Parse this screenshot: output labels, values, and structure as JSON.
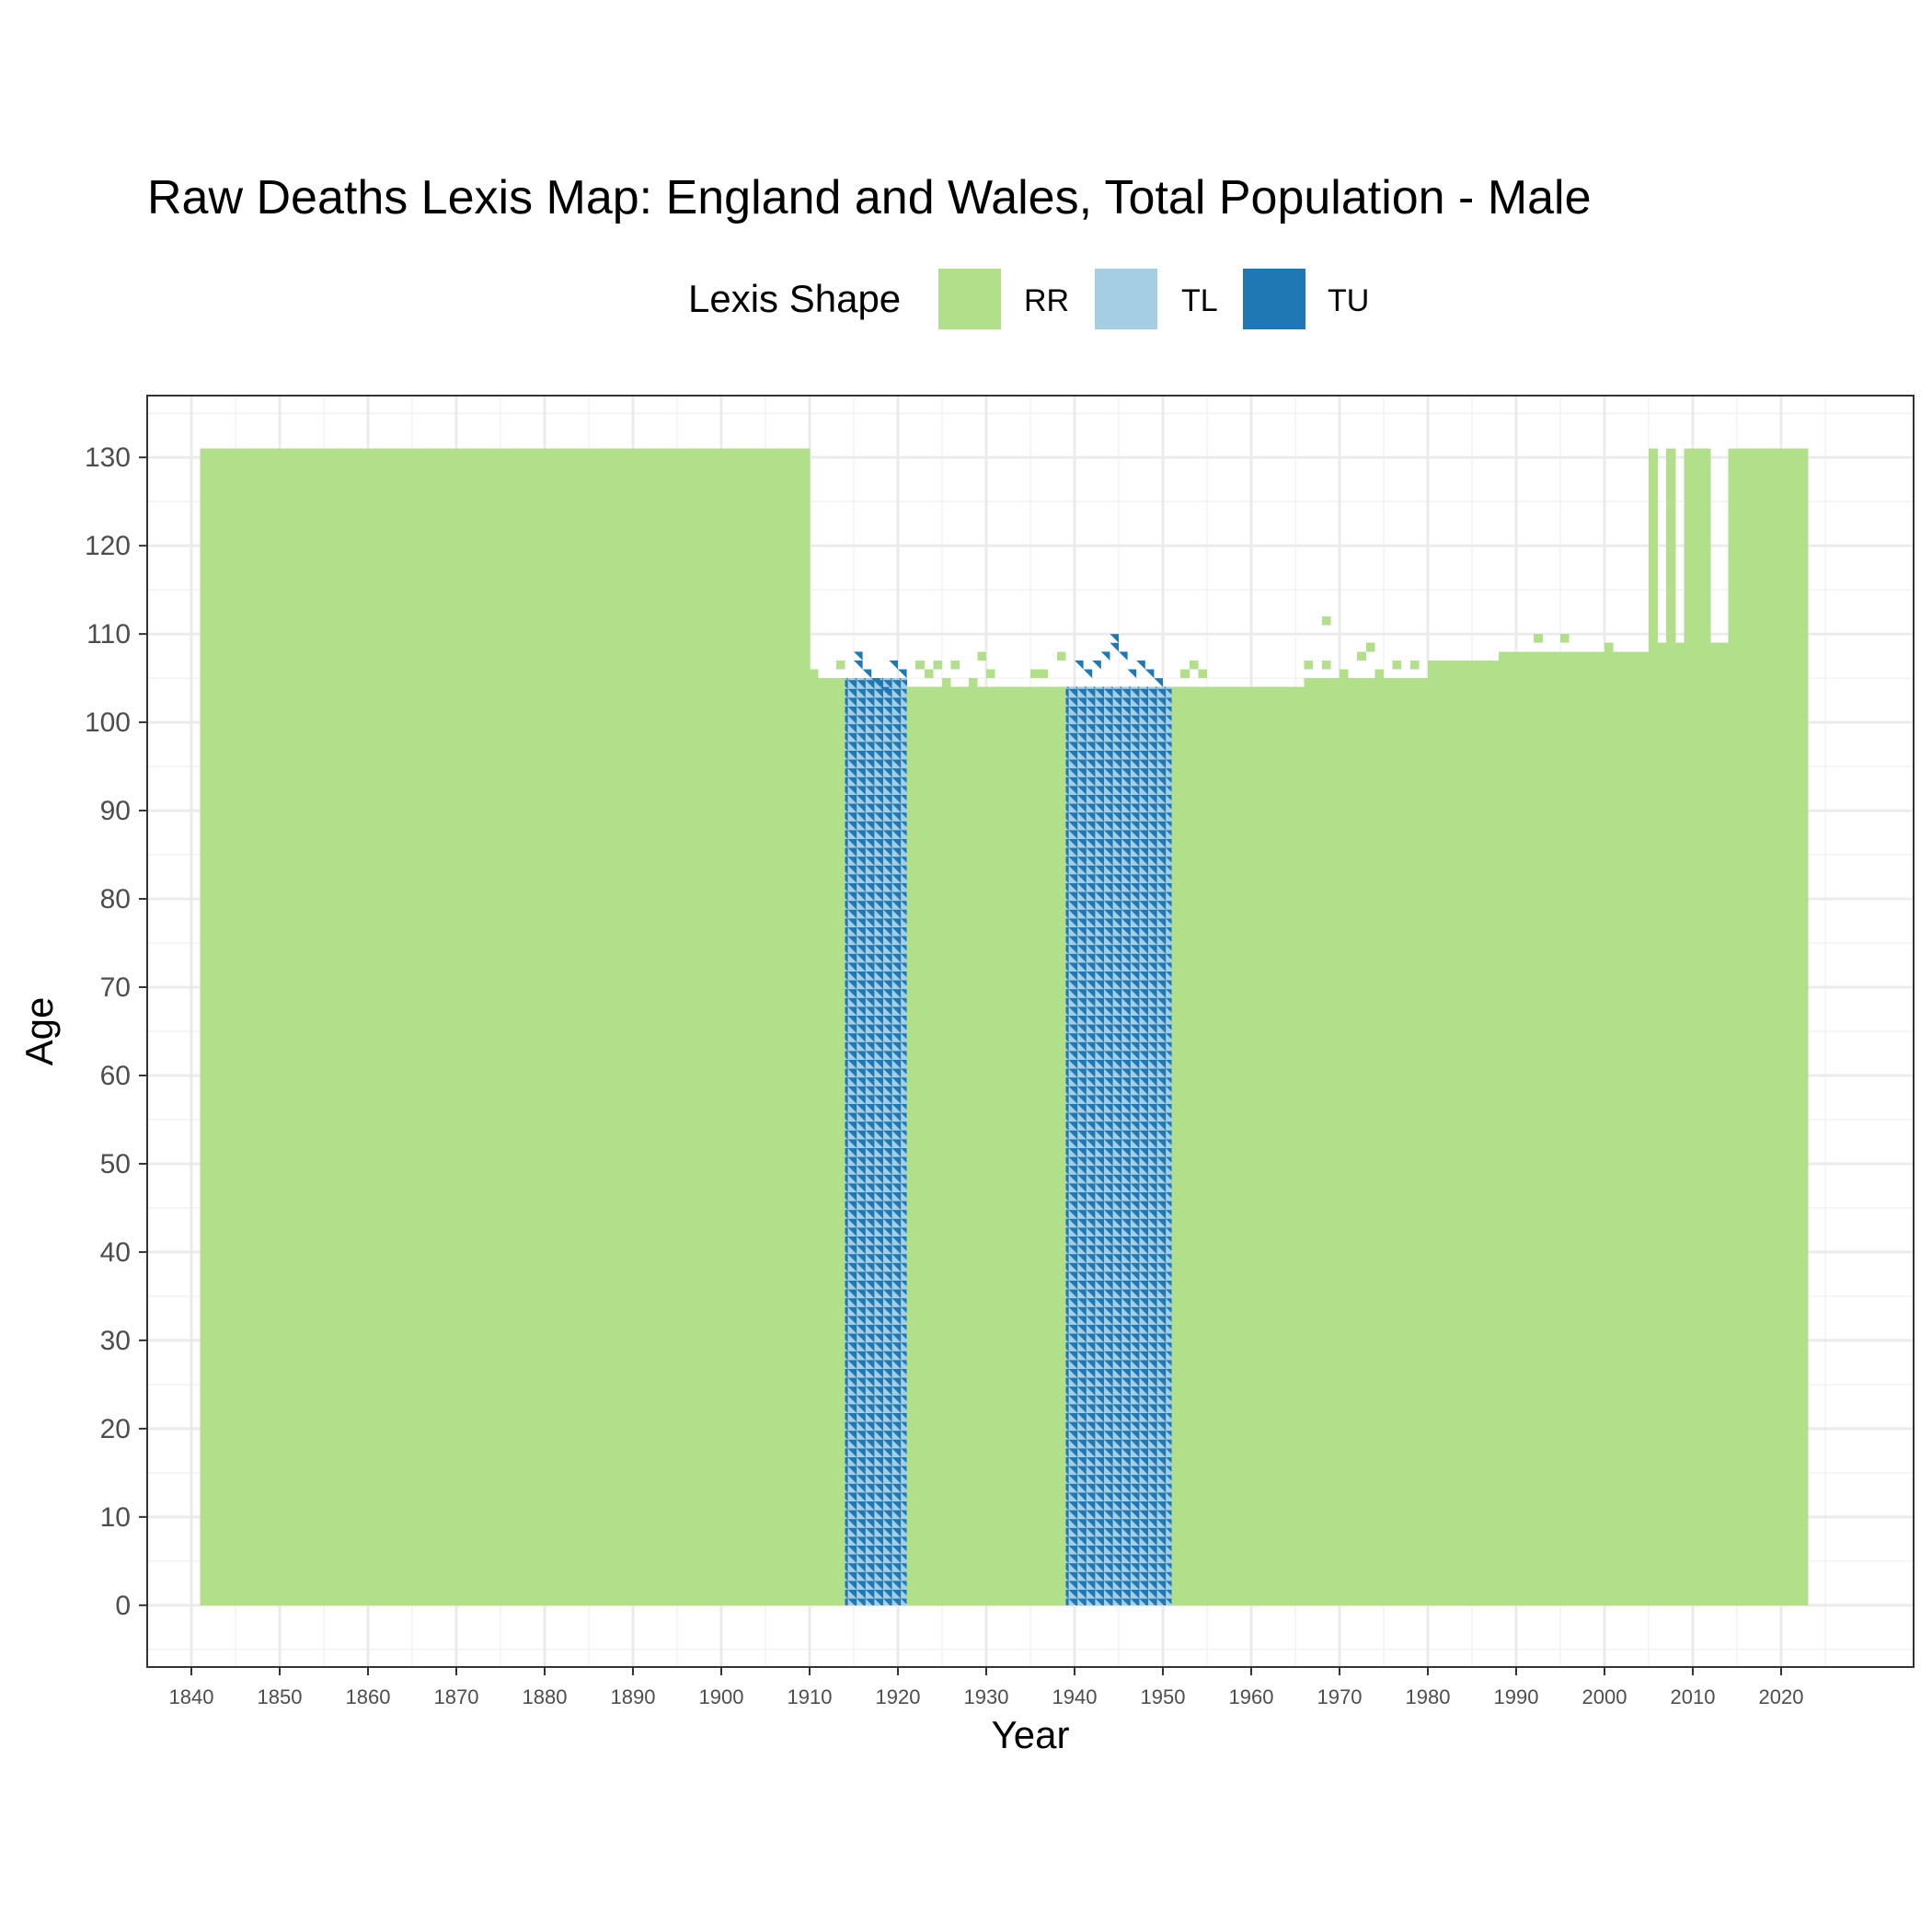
{
  "chart_data": {
    "type": "heatmap",
    "title": "Raw Deaths Lexis Map: England and Wales, Total Population - Male",
    "xlabel": "Year",
    "ylabel": "Age",
    "xlim": [
      1835,
      2035
    ],
    "ylim": [
      -7,
      137
    ],
    "x_ticks": [
      1840,
      1850,
      1860,
      1870,
      1880,
      1890,
      1900,
      1910,
      1920,
      1930,
      1940,
      1950,
      1960,
      1970,
      1980,
      1990,
      2000,
      2010,
      2020
    ],
    "y_ticks": [
      0,
      10,
      20,
      30,
      40,
      50,
      60,
      70,
      80,
      90,
      100,
      110,
      120,
      130
    ],
    "grid": true,
    "legend": {
      "title": "Lexis Shape",
      "position": "top",
      "entries": [
        {
          "label": "RR",
          "color": "#b2df8a"
        },
        {
          "label": "TL",
          "color": "#a6cee3"
        },
        {
          "label": "TU",
          "color": "#1f78b4"
        }
      ]
    },
    "regions": [
      {
        "shape": "RR",
        "year_start": 1841,
        "year_end": 1910,
        "age_max": 131
      },
      {
        "shape": "RR",
        "year_start": 1910,
        "year_end": 1914,
        "age_max": 105
      },
      {
        "shape": "TL/TU",
        "year_start": 1914,
        "year_end": 1921,
        "age_max": 105
      },
      {
        "shape": "RR",
        "year_start": 1921,
        "year_end": 1939,
        "age_max": 104
      },
      {
        "shape": "TL/TU",
        "year_start": 1939,
        "year_end": 1951,
        "age_max": 104
      },
      {
        "shape": "RR",
        "year_start": 1951,
        "year_end": 1966,
        "age_max": 104
      },
      {
        "shape": "RR",
        "year_start": 1966,
        "year_end": 1980,
        "age_max": 105
      },
      {
        "shape": "RR",
        "year_start": 1980,
        "year_end": 1989,
        "age_max": 107
      },
      {
        "shape": "RR",
        "year_start": 1989,
        "year_end": 2005,
        "age_max": 108
      },
      {
        "shape": "RR",
        "year_start": 2005,
        "year_end": 2014,
        "age_max": 109
      },
      {
        "shape": "RR",
        "year_start": 2014,
        "year_end": 2023,
        "age_max": 131
      },
      {
        "shape": "RR",
        "year_start": 2005,
        "year_end": 2006,
        "age_max": 131
      },
      {
        "shape": "RR",
        "year_start": 2007,
        "year_end": 2008,
        "age_max": 131
      },
      {
        "shape": "RR",
        "year_start": 2009,
        "year_end": 2012,
        "age_max": 131
      }
    ],
    "sparse_cells": [
      {
        "shape": "RR",
        "year": 1910,
        "age": 105
      },
      {
        "shape": "RR",
        "year": 1913,
        "age": 106
      },
      {
        "shape": "TU",
        "year": 1915,
        "age": 107
      },
      {
        "shape": "TU",
        "year": 1915,
        "age": 106
      },
      {
        "shape": "TU",
        "year": 1916,
        "age": 105
      },
      {
        "shape": "TU",
        "year": 1917,
        "age": 104
      },
      {
        "shape": "TU",
        "year": 1918,
        "age": 103
      },
      {
        "shape": "TU",
        "year": 1919,
        "age": 106
      },
      {
        "shape": "TU",
        "year": 1920,
        "age": 105
      },
      {
        "shape": "RR",
        "year": 1922,
        "age": 106
      },
      {
        "shape": "RR",
        "year": 1923,
        "age": 105
      },
      {
        "shape": "RR",
        "year": 1924,
        "age": 106
      },
      {
        "shape": "RR",
        "year": 1925,
        "age": 104
      },
      {
        "shape": "RR",
        "year": 1926,
        "age": 106
      },
      {
        "shape": "RR",
        "year": 1928,
        "age": 104
      },
      {
        "shape": "RR",
        "year": 1928,
        "age": 103
      },
      {
        "shape": "RR",
        "year": 1929,
        "age": 107
      },
      {
        "shape": "RR",
        "year": 1930,
        "age": 105
      },
      {
        "shape": "RR",
        "year": 1934,
        "age": 103
      },
      {
        "shape": "RR",
        "year": 1934,
        "age": 102
      },
      {
        "shape": "RR",
        "year": 1935,
        "age": 105
      },
      {
        "shape": "RR",
        "year": 1936,
        "age": 105
      },
      {
        "shape": "RR",
        "year": 1938,
        "age": 107
      },
      {
        "shape": "TU",
        "year": 1940,
        "age": 106
      },
      {
        "shape": "TU",
        "year": 1941,
        "age": 105
      },
      {
        "shape": "TU",
        "year": 1942,
        "age": 106
      },
      {
        "shape": "TU",
        "year": 1943,
        "age": 107
      },
      {
        "shape": "TU",
        "year": 1944,
        "age": 108
      },
      {
        "shape": "TU",
        "year": 1944,
        "age": 109
      },
      {
        "shape": "TU",
        "year": 1945,
        "age": 107
      },
      {
        "shape": "TU",
        "year": 1946,
        "age": 105
      },
      {
        "shape": "TU",
        "year": 1947,
        "age": 106
      },
      {
        "shape": "TU",
        "year": 1948,
        "age": 105
      },
      {
        "shape": "TU",
        "year": 1949,
        "age": 104
      },
      {
        "shape": "RR",
        "year": 1952,
        "age": 105
      },
      {
        "shape": "RR",
        "year": 1953,
        "age": 106
      },
      {
        "shape": "RR",
        "year": 1954,
        "age": 105
      },
      {
        "shape": "RR",
        "year": 1966,
        "age": 106
      },
      {
        "shape": "RR",
        "year": 1968,
        "age": 106
      },
      {
        "shape": "RR",
        "year": 1968,
        "age": 111
      },
      {
        "shape": "RR",
        "year": 1970,
        "age": 105
      },
      {
        "shape": "RR",
        "year": 1972,
        "age": 107
      },
      {
        "shape": "RR",
        "year": 1973,
        "age": 108
      },
      {
        "shape": "RR",
        "year": 1974,
        "age": 105
      },
      {
        "shape": "RR",
        "year": 1976,
        "age": 106
      },
      {
        "shape": "RR",
        "year": 1978,
        "age": 106
      },
      {
        "shape": "RR",
        "year": 1984,
        "age": 106
      },
      {
        "shape": "RR",
        "year": 1986,
        "age": 106
      },
      {
        "shape": "RR",
        "year": 1988,
        "age": 107
      },
      {
        "shape": "RR",
        "year": 1992,
        "age": 109
      },
      {
        "shape": "RR",
        "year": 1995,
        "age": 109
      },
      {
        "shape": "RR",
        "year": 1998,
        "age": 107
      },
      {
        "shape": "RR",
        "year": 2000,
        "age": 108
      },
      {
        "shape": "RR",
        "year": 2003,
        "age": 107
      }
    ]
  }
}
